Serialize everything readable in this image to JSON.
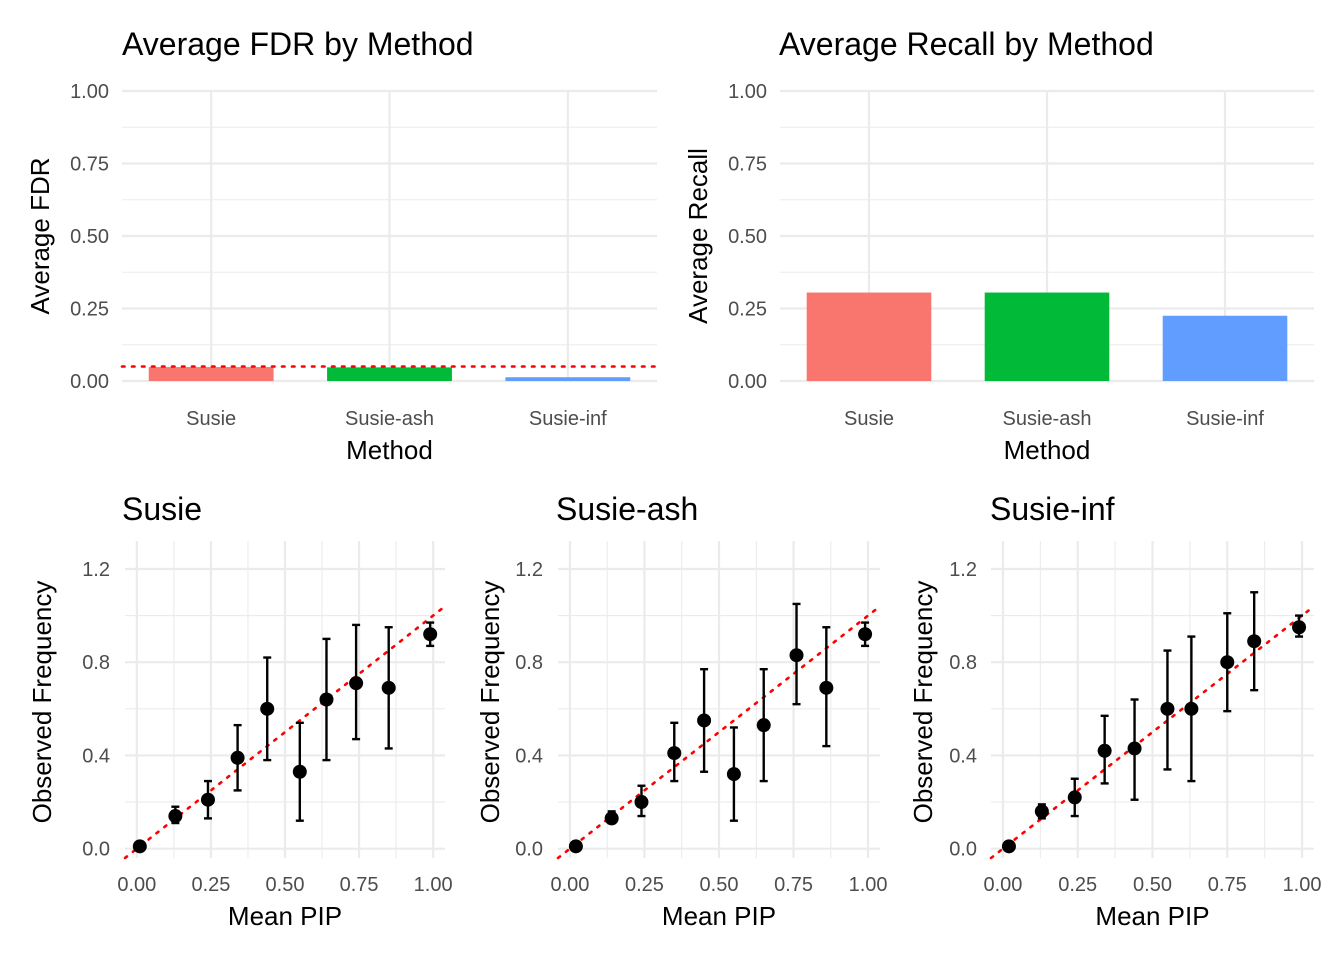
{
  "chart_data": [
    {
      "type": "bar",
      "title": "Average FDR by Method",
      "xlabel": "Method",
      "ylabel": "Average FDR",
      "categories": [
        "Susie",
        "Susie-ash",
        "Susie-inf"
      ],
      "values": [
        0.048,
        0.047,
        0.013
      ],
      "colors": [
        "#F8766D",
        "#00BA38",
        "#619CFF"
      ],
      "ylim": [
        0,
        1
      ],
      "yticks": [
        "0.00",
        "0.25",
        "0.50",
        "0.75",
        "1.00"
      ],
      "reference_line": {
        "y": 0.05,
        "color": "#FF0000",
        "style": "dotted"
      },
      "grid": true,
      "legend": "none"
    },
    {
      "type": "bar",
      "title": "Average Recall by Method",
      "xlabel": "Method",
      "ylabel": "Average Recall",
      "categories": [
        "Susie",
        "Susie-ash",
        "Susie-inf"
      ],
      "values": [
        0.305,
        0.305,
        0.225
      ],
      "colors": [
        "#F8766D",
        "#00BA38",
        "#619CFF"
      ],
      "ylim": [
        0,
        1
      ],
      "yticks": [
        "0.00",
        "0.25",
        "0.50",
        "0.75",
        "1.00"
      ],
      "grid": true,
      "legend": "none"
    },
    {
      "type": "scatter",
      "title": "Susie",
      "xlabel": "Mean PIP",
      "ylabel": "Observed Frequency",
      "x": [
        0.01,
        0.13,
        0.24,
        0.34,
        0.44,
        0.55,
        0.64,
        0.74,
        0.85,
        0.99
      ],
      "y": [
        0.01,
        0.14,
        0.21,
        0.39,
        0.6,
        0.33,
        0.64,
        0.71,
        0.69,
        0.92
      ],
      "ymin": [
        0.0,
        0.11,
        0.13,
        0.25,
        0.38,
        0.12,
        0.38,
        0.47,
        0.43,
        0.87
      ],
      "ymax": [
        0.02,
        0.18,
        0.29,
        0.53,
        0.82,
        0.54,
        0.9,
        0.96,
        0.95,
        0.97
      ],
      "xlim": [
        -0.04,
        1.04
      ],
      "ylim": [
        -0.04,
        1.32
      ],
      "xticks": [
        "0.00",
        "0.25",
        "0.50",
        "0.75",
        "1.00"
      ],
      "yticks": [
        "0.0",
        "0.4",
        "0.8",
        "1.2"
      ],
      "reference_line": {
        "type": "identity",
        "color": "#FF0000",
        "style": "dotted"
      },
      "grid": true,
      "legend": "none"
    },
    {
      "type": "scatter",
      "title": "Susie-ash",
      "xlabel": "Mean PIP",
      "ylabel": "Observed Frequency",
      "x": [
        0.02,
        0.14,
        0.24,
        0.35,
        0.45,
        0.55,
        0.65,
        0.76,
        0.86,
        0.99
      ],
      "y": [
        0.01,
        0.13,
        0.2,
        0.41,
        0.55,
        0.32,
        0.53,
        0.83,
        0.69,
        0.92
      ],
      "ymin": [
        0.0,
        0.11,
        0.14,
        0.29,
        0.33,
        0.12,
        0.29,
        0.62,
        0.44,
        0.87
      ],
      "ymax": [
        0.02,
        0.16,
        0.27,
        0.54,
        0.77,
        0.52,
        0.77,
        1.05,
        0.95,
        0.97
      ],
      "xlim": [
        -0.04,
        1.04
      ],
      "ylim": [
        -0.04,
        1.32
      ],
      "xticks": [
        "0.00",
        "0.25",
        "0.50",
        "0.75",
        "1.00"
      ],
      "yticks": [
        "0.0",
        "0.4",
        "0.8",
        "1.2"
      ],
      "reference_line": {
        "type": "identity",
        "color": "#FF0000",
        "style": "dotted"
      },
      "grid": true,
      "legend": "none"
    },
    {
      "type": "scatter",
      "title": "Susie-inf",
      "xlabel": "Mean PIP",
      "ylabel": "Observed Frequency",
      "x": [
        0.02,
        0.13,
        0.24,
        0.34,
        0.44,
        0.55,
        0.63,
        0.75,
        0.84,
        0.99
      ],
      "y": [
        0.01,
        0.16,
        0.22,
        0.42,
        0.43,
        0.6,
        0.6,
        0.8,
        0.89,
        0.95
      ],
      "ymin": [
        0.0,
        0.13,
        0.14,
        0.28,
        0.21,
        0.34,
        0.29,
        0.59,
        0.68,
        0.91
      ],
      "ymax": [
        0.02,
        0.19,
        0.3,
        0.57,
        0.64,
        0.85,
        0.91,
        1.01,
        1.1,
        1.0
      ],
      "xlim": [
        -0.04,
        1.04
      ],
      "ylim": [
        -0.04,
        1.32
      ],
      "xticks": [
        "0.00",
        "0.25",
        "0.50",
        "0.75",
        "1.00"
      ],
      "yticks": [
        "0.0",
        "0.4",
        "0.8",
        "1.2"
      ],
      "reference_line": {
        "type": "identity",
        "color": "#FF0000",
        "style": "dotted"
      },
      "grid": true,
      "legend": "none"
    }
  ]
}
